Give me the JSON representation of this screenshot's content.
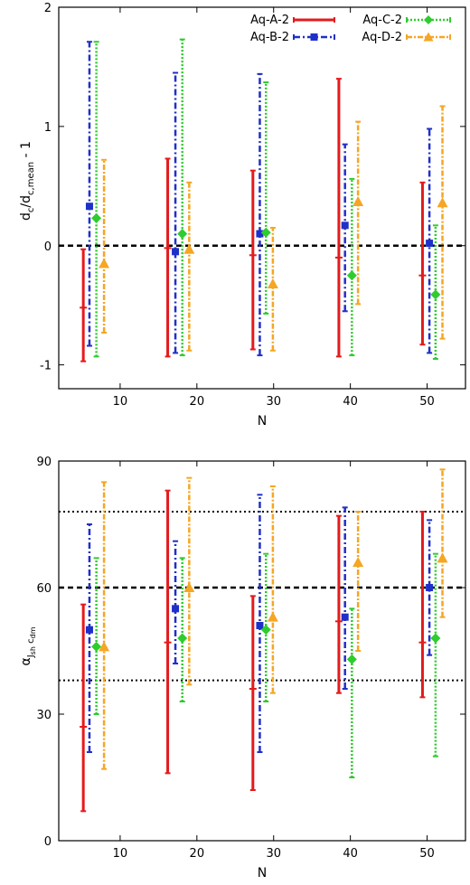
{
  "chart_data": [
    {
      "type": "errorbar",
      "xlabel": "N",
      "ylabel": "d_c/d_c,mean - 1",
      "ylabel_main": "d",
      "ylabel_sub1": "c",
      "ylabel_mid": "/d",
      "ylabel_sub2": "c,mean",
      "ylabel_tail": " - 1",
      "xlim": [
        2,
        55
      ],
      "ylim": [
        -1.2,
        2.0
      ],
      "xticks": [
        10,
        20,
        30,
        40,
        50
      ],
      "yticks": [
        -1,
        0,
        1,
        2
      ],
      "hlines": [
        {
          "y": 0,
          "style": "dashed"
        }
      ],
      "legend": "top-right",
      "series": [
        {
          "name": "Aq-A-2",
          "color": "#e41a1c",
          "marker": "plus",
          "x": [
            5.2,
            16.2,
            27.3,
            38.5,
            49.4
          ],
          "y": [
            -0.52,
            -0.02,
            -0.08,
            -0.1,
            -0.25
          ],
          "lo": [
            -0.97,
            -0.93,
            -0.87,
            -0.93,
            -0.83
          ],
          "hi": [
            -0.03,
            0.73,
            0.63,
            1.4,
            0.53
          ]
        },
        {
          "name": "Aq-B-2",
          "color": "#1f30c8",
          "marker": "square",
          "x": [
            6.0,
            17.2,
            28.2,
            39.3,
            50.3
          ],
          "y": [
            0.33,
            -0.05,
            0.1,
            0.17,
            0.02
          ],
          "lo": [
            -0.84,
            -0.9,
            -0.92,
            -0.55,
            -0.9
          ],
          "hi": [
            1.71,
            1.45,
            1.44,
            0.85,
            0.98
          ]
        },
        {
          "name": "Aq-C-2",
          "color": "#2ecc2e",
          "marker": "diamond",
          "x": [
            6.9,
            18.1,
            29.0,
            40.2,
            51.1
          ],
          "y": [
            0.23,
            0.1,
            0.11,
            -0.25,
            -0.41
          ],
          "lo": [
            -0.93,
            -0.92,
            -0.57,
            -0.92,
            -0.95
          ],
          "hi": [
            1.71,
            1.73,
            1.37,
            0.56,
            0.17
          ]
        },
        {
          "name": "Aq-D-2",
          "color": "#f5a623",
          "marker": "triangle",
          "x": [
            7.9,
            19.0,
            29.9,
            41.0,
            52.0
          ],
          "y": [
            -0.15,
            -0.03,
            -0.32,
            0.37,
            0.36
          ],
          "lo": [
            -0.73,
            -0.88,
            -0.88,
            -0.49,
            -0.78
          ],
          "hi": [
            0.72,
            0.53,
            0.15,
            1.04,
            1.17
          ]
        }
      ]
    },
    {
      "type": "errorbar",
      "xlabel": "N",
      "ylabel": "α_Jsh cdm",
      "ylabel_main": "α",
      "ylabel_sub1": "J",
      "ylabel_subsub": "sh",
      "ylabel_sub2": " c",
      "ylabel_subsub2": "dm",
      "xlim": [
        2,
        55
      ],
      "ylim": [
        0,
        90
      ],
      "xticks": [
        10,
        20,
        30,
        40,
        50
      ],
      "yticks": [
        0,
        30,
        60,
        90
      ],
      "hlines": [
        {
          "y": 78,
          "style": "dotted"
        },
        {
          "y": 60,
          "style": "dashed"
        },
        {
          "y": 38,
          "style": "dotted"
        }
      ],
      "series": [
        {
          "name": "Aq-A-2",
          "color": "#e41a1c",
          "marker": "plus",
          "x": [
            5.2,
            16.2,
            27.3,
            38.5,
            49.4
          ],
          "y": [
            27,
            47,
            36,
            52,
            47
          ],
          "lo": [
            7,
            16,
            12,
            35,
            34
          ],
          "hi": [
            56,
            83,
            58,
            77,
            78
          ]
        },
        {
          "name": "Aq-B-2",
          "color": "#1f30c8",
          "marker": "square",
          "x": [
            6.0,
            17.2,
            28.2,
            39.3,
            50.3
          ],
          "y": [
            50,
            55,
            51,
            53,
            60
          ],
          "lo": [
            21,
            42,
            21,
            36,
            44
          ],
          "hi": [
            75,
            71,
            82,
            79,
            76
          ]
        },
        {
          "name": "Aq-C-2",
          "color": "#2ecc2e",
          "marker": "diamond",
          "x": [
            6.9,
            18.1,
            29.0,
            40.2,
            51.1
          ],
          "y": [
            46,
            48,
            50,
            43,
            48
          ],
          "lo": [
            30,
            33,
            33,
            15,
            20
          ],
          "hi": [
            67,
            67,
            68,
            55,
            68
          ]
        },
        {
          "name": "Aq-D-2",
          "color": "#f5a623",
          "marker": "triangle",
          "x": [
            7.9,
            19.0,
            29.9,
            41.0,
            52.0
          ],
          "y": [
            46,
            60,
            53,
            66,
            67
          ],
          "lo": [
            17,
            37,
            35,
            45,
            53
          ],
          "hi": [
            85,
            86,
            84,
            78,
            88
          ]
        }
      ]
    }
  ]
}
